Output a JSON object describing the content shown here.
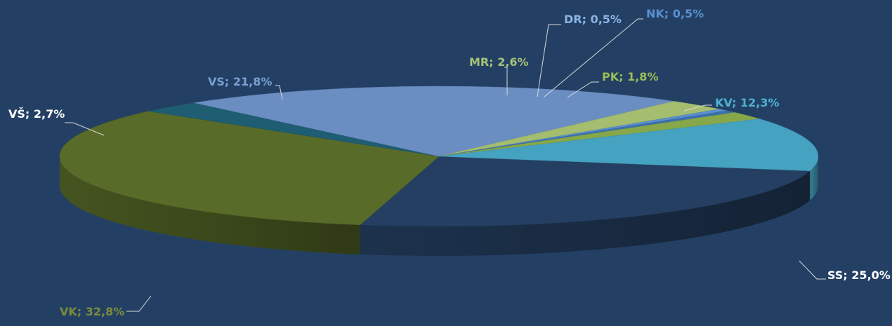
{
  "chart_data": {
    "type": "pie",
    "title": "",
    "style": "3d",
    "legend": "none",
    "slices": [
      {
        "label": "SS",
        "value": 25.0,
        "display": "SS; 25,0%",
        "color": "#243f61",
        "label_color": "#ffffff"
      },
      {
        "label": "VK",
        "value": 32.8,
        "display": "VK; 32,8%",
        "color": "#586b28",
        "label_color": "#7c8c3a"
      },
      {
        "label": "VŠ",
        "value": 2.7,
        "display": "VŠ; 2,7%",
        "color": "#1f5d72",
        "label_color": "#ffffff"
      },
      {
        "label": "VS",
        "value": 21.8,
        "display": "VS; 21,8%",
        "color": "#6a8ec2",
        "label_color": "#7aa0d4"
      },
      {
        "label": "MR",
        "value": 2.6,
        "display": "MR; 2,6%",
        "color": "#a4bd6e",
        "label_color": "#a8c27a"
      },
      {
        "label": "DR",
        "value": 0.5,
        "display": "DR; 0,5%",
        "color": "#5c8fcb",
        "label_color": "#8cb4e2"
      },
      {
        "label": "NK",
        "value": 0.5,
        "display": "NK; 0,5%",
        "color": "#3a70b0",
        "label_color": "#5b8fd0"
      },
      {
        "label": "PK",
        "value": 1.8,
        "display": "PK; 1,8%",
        "color": "#86a84a",
        "label_color": "#9bbe57"
      },
      {
        "label": "KV",
        "value": 12.3,
        "display": "KV; 12,3%",
        "color": "#45a2c0",
        "label_color": "#4fb1d1"
      }
    ]
  }
}
